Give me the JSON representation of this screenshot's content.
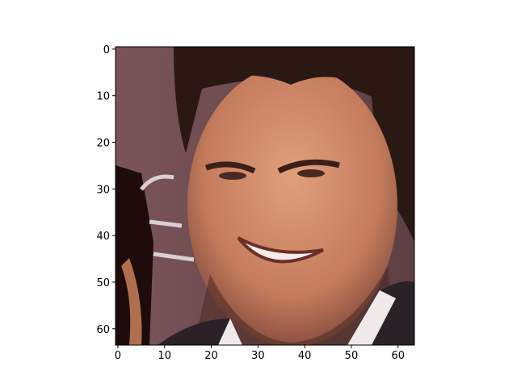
{
  "chart_data": {
    "type": "image",
    "xlim": [
      -0.5,
      63.5
    ],
    "ylim": [
      63.5,
      -0.5
    ],
    "xticks": [
      0,
      10,
      20,
      30,
      40,
      50,
      60
    ],
    "yticks": [
      0,
      10,
      20,
      30,
      40,
      50,
      60
    ]
  }
}
